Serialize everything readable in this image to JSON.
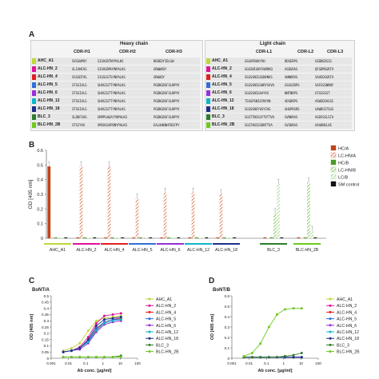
{
  "panelA": {
    "letter": "A",
    "heavy_title": "Heavy chain",
    "light_title": "Light chain",
    "heavy_cols": [
      "CDR-H1",
      "CDR-H2",
      "CDR-H3"
    ],
    "light_cols": [
      "CDR-L1",
      "CDR-L2",
      "CDR-L3"
    ],
    "rows": [
      {
        "label": "AHC_A1",
        "color": "#c0d63a",
        "h": [
          "SVSSWPKY",
          "SIGVGRTNYPALKS",
          "NSREDYIDLSW"
        ],
        "l": [
          "GSGVPDAKYVH",
          "RDSERPS",
          "GSDDEDSIG"
        ]
      },
      {
        "label": "ALC-HN_2",
        "color": "#e0119b",
        "h": [
          "SLIANCVG",
          "SIGVGRPHYNPALKS",
          "GRWWADY"
        ],
        "l": [
          "GGGSNIGNYSVNRVQ",
          "ASDGRAS",
          "QFGDMSGRTV"
        ]
      },
      {
        "label": "ALC-HN_4",
        "color": "#e02020",
        "h": [
          "SSSSDTVG",
          "SIGSGSTSYNPALKS",
          "GRWADY"
        ],
        "l": [
          "SSGSSNIGSGNVNVS",
          "ANNKRVS",
          "SAVEDSGRTV"
        ]
      },
      {
        "label": "ALC-HN_5",
        "color": "#2f6fd6",
        "h": [
          "STSSIVLG",
          "SHVGIGTTYNPALKS",
          "PGDDGDSFSLNPYV"
        ],
        "l": [
          "SSGSSNIGSHRYSVVA",
          "GSGGSRPS",
          "SAFGSSNRNY"
        ]
      },
      {
        "label": "ALC-HN_6",
        "color": "#9b2fd6",
        "h": [
          "STSSIVLG",
          "SHVGIGTTYNPALKS",
          "PGDDGDSFSLNPYV"
        ],
        "l": [
          "SGGSSNIGAAYVS",
          "NNTNRPS",
          "GTGSSSST"
        ]
      },
      {
        "label": "ALC-HN_12",
        "color": "#0fb4c8",
        "h": [
          "STSSIVLG",
          "SHVGIGTTYNPALKS",
          "PGDDGDSFSLNPYV"
        ],
        "l": [
          "TSSGPSNIGYNYVN",
          "ADSDRPS",
          "ASWSDSVGSI"
        ]
      },
      {
        "label": "ALC-HN_18",
        "color": "#1d2d8a",
        "h": [
          "STSSIVLG",
          "SHVGIGTTYNPALKS",
          "PGDDGDSFSLNPYV"
        ],
        "l": [
          "SGSSSNGYVGYIAG",
          "GHGPRSRS",
          "GAWDGSTSGS"
        ]
      },
      {
        "label": "BLC_3",
        "color": "#2e7d2e",
        "h": [
          "SLDDFSVG",
          "GMPPLWGAYYNPALKS",
          "PGDDGDSFSLNPYV"
        ],
        "l": [
          "SGSTTNIGSYTVTTVA",
          "GVNKRAS",
          "ASDSSSLSTA"
        ]
      },
      {
        "label": "BLC-HN_2B",
        "color": "#6ec81e",
        "h": [
          "STSIYVG",
          "VMSVGGVPDNYPALKS",
          "EALAHKNHFDGFPY"
        ],
        "l": [
          "SGSTADIGSDNTTVA",
          "GVSKRAS",
          "AAADNSLVE"
        ]
      }
    ]
  },
  "panelB": {
    "letter": "B",
    "ylabel": "OD [405 nm]",
    "yticks": [
      "0",
      "0.1",
      "0.2",
      "0.3",
      "0.4",
      "0.5",
      "0.6"
    ],
    "legend": [
      {
        "label": "HC/A",
        "color": "#c0441a",
        "fill": "solid"
      },
      {
        "label": "LC-HN/A",
        "color": "#d9764e",
        "fill": "hatch"
      },
      {
        "label": "HC/B",
        "color": "#4c9a2a",
        "fill": "solid"
      },
      {
        "label": "LC-HN/B",
        "color": "#7fc35a",
        "fill": "hatch"
      },
      {
        "label": "LC/B",
        "color": "#a6d98a",
        "fill": "hatch"
      },
      {
        "label": "SM control",
        "color": "#111111",
        "fill": "solid"
      }
    ],
    "groups": [
      {
        "label": "AHC_A1",
        "color": "#c0d63a",
        "values": [
          0.49,
          0.0,
          0.0,
          0.0,
          0.0,
          0.0
        ]
      },
      {
        "label": "ALC-HN_2",
        "color": "#e0119b",
        "values": [
          0.0,
          0.49,
          0.0,
          0.0,
          0.0,
          0.0
        ]
      },
      {
        "label": "ALC-HN_4",
        "color": "#e02020",
        "values": [
          0.0,
          0.49,
          0.0,
          0.0,
          0.0,
          0.0
        ]
      },
      {
        "label": "ALC-HN_5",
        "color": "#2f6fd6",
        "values": [
          0.0,
          0.27,
          0.0,
          0.0,
          0.0,
          0.0
        ]
      },
      {
        "label": "ALC-HN_6",
        "color": "#9b2fd6",
        "values": [
          0.0,
          0.31,
          0.0,
          0.0,
          0.0,
          0.0
        ]
      },
      {
        "label": "ALC-HN_12",
        "color": "#0fb4c8",
        "values": [
          0.0,
          0.31,
          0.0,
          0.0,
          0.0,
          0.0
        ]
      },
      {
        "label": "ALC-HN_18",
        "color": "#1d2d8a",
        "values": [
          0.0,
          0.3,
          0.0,
          0.0,
          0.0,
          0.0
        ]
      },
      {
        "label": "BLC_3",
        "color": "#2e7d2e",
        "values": [
          0.0,
          0.0,
          0.0,
          0.17,
          0.37,
          0.0
        ]
      },
      {
        "label": "BLC-HN_2B",
        "color": "#6ec81e",
        "values": [
          0.0,
          0.0,
          0.0,
          0.38,
          0.05,
          0.0
        ]
      }
    ]
  },
  "panelC": {
    "letter": "C",
    "title": "BoNT/A",
    "ylabel": "OD [405 nm]",
    "xlabel": "Ab conc. [µg/ml]",
    "yticks": [
      "0",
      "0.05",
      "0.1",
      "0.15",
      "0.2",
      "0.25",
      "0.3",
      "0.35",
      "0.4",
      "0.45",
      "0.5"
    ],
    "xticks": [
      "0.001",
      "0.01",
      "0.1",
      "1",
      "10",
      "100"
    ]
  },
  "panelD": {
    "letter": "D",
    "title": "BoNT/B",
    "ylabel": "OD [405 nm]",
    "xlabel": "Ab conc. [µg/ml]",
    "yticks": [
      "0",
      "0.1",
      "0.2",
      "0.3",
      "0.4",
      "0.5",
      "0.6"
    ],
    "xticks": [
      "0.001",
      "0.01",
      "0.1",
      "1",
      "10",
      "100"
    ]
  },
  "lineLegend": [
    {
      "label": "AHC_A1",
      "color": "#c0d63a"
    },
    {
      "label": "ALC-HN_2",
      "color": "#e0119b"
    },
    {
      "label": "ALC-HN_4",
      "color": "#e02020"
    },
    {
      "label": "ALC-HN_5",
      "color": "#2f6fd6"
    },
    {
      "label": "ALC-HN_6",
      "color": "#9b2fd6"
    },
    {
      "label": "ALC-HN_12",
      "color": "#0fb4c8"
    },
    {
      "label": "ALC-HN_18",
      "color": "#1d2d8a"
    },
    {
      "label": "BLC_3",
      "color": "#2e7d2e"
    },
    {
      "label": "BLC-HN_2B",
      "color": "#6ec81e"
    }
  ],
  "chart_data": [
    {
      "type": "bar",
      "title": "",
      "ylabel": "OD [405 nm]",
      "ylim": [
        0,
        0.6
      ],
      "categories": [
        "AHC_A1",
        "ALC-HN_2",
        "ALC-HN_4",
        "ALC-HN_5",
        "ALC-HN_6",
        "ALC-HN_12",
        "ALC-HN_18",
        "BLC_3",
        "BLC-HN_2B"
      ],
      "series": [
        {
          "name": "HC/A",
          "values": [
            0.49,
            0,
            0,
            0,
            0,
            0,
            0,
            0,
            0
          ]
        },
        {
          "name": "LC-HN/A",
          "values": [
            0,
            0.49,
            0.49,
            0.27,
            0.31,
            0.31,
            0.3,
            0,
            0
          ]
        },
        {
          "name": "HC/B",
          "values": [
            0,
            0,
            0,
            0,
            0,
            0,
            0,
            0,
            0
          ]
        },
        {
          "name": "LC-HN/B",
          "values": [
            0,
            0,
            0,
            0,
            0,
            0,
            0,
            0.17,
            0.38
          ]
        },
        {
          "name": "LC/B",
          "values": [
            0,
            0,
            0,
            0,
            0,
            0,
            0,
            0.37,
            0.05
          ]
        },
        {
          "name": "SM control",
          "values": [
            0,
            0,
            0,
            0,
            0,
            0,
            0,
            0,
            0
          ]
        }
      ]
    },
    {
      "type": "line",
      "title": "BoNT/A",
      "xlabel": "Ab conc. [µg/ml]",
      "ylabel": "OD [405 nm]",
      "ylim": [
        0,
        0.5
      ],
      "x": [
        0.005,
        0.015,
        0.045,
        0.14,
        0.41,
        1.2,
        3.7,
        11
      ],
      "series": [
        {
          "name": "AHC_A1",
          "values": [
            0.06,
            0.08,
            0.12,
            0.22,
            0.3,
            0.32,
            0.33,
            0.34
          ]
        },
        {
          "name": "ALC-HN_2",
          "values": [
            0.05,
            0.06,
            0.09,
            0.17,
            0.28,
            0.34,
            0.35,
            0.36
          ]
        },
        {
          "name": "ALC-HN_4",
          "values": [
            0.05,
            0.06,
            0.08,
            0.14,
            0.23,
            0.29,
            0.31,
            0.32
          ]
        },
        {
          "name": "ALC-HN_5",
          "values": [
            0.05,
            0.06,
            0.08,
            0.14,
            0.24,
            0.29,
            0.31,
            0.31
          ]
        },
        {
          "name": "ALC-HN_6",
          "values": [
            0.05,
            0.06,
            0.07,
            0.12,
            0.21,
            0.27,
            0.29,
            0.3
          ]
        },
        {
          "name": "ALC-HN_12",
          "values": [
            0.05,
            0.06,
            0.08,
            0.13,
            0.22,
            0.28,
            0.3,
            0.31
          ]
        },
        {
          "name": "ALC-HN_18",
          "values": [
            0.05,
            0.06,
            0.08,
            0.15,
            0.26,
            0.31,
            0.32,
            0.33
          ]
        },
        {
          "name": "BLC_3",
          "values": [
            0.01,
            0.01,
            0.01,
            0.01,
            0.01,
            0.01,
            0.01,
            0.02
          ]
        },
        {
          "name": "BLC-HN_2B",
          "values": [
            0.01,
            0.01,
            0.01,
            0.01,
            0.01,
            0.01,
            0.01,
            0.01
          ]
        }
      ]
    },
    {
      "type": "line",
      "title": "BoNT/B",
      "xlabel": "Ab conc. [µg/ml]",
      "ylabel": "OD [405 nm]",
      "ylim": [
        0,
        0.6
      ],
      "x": [
        0.005,
        0.015,
        0.045,
        0.14,
        0.41,
        1.2,
        3.7,
        11
      ],
      "series": [
        {
          "name": "AHC_A1",
          "values": [
            0.01,
            0.01,
            0.01,
            0.01,
            0.01,
            0.01,
            0.01,
            0.01
          ]
        },
        {
          "name": "ALC-HN_2",
          "values": [
            0.01,
            0.01,
            0.01,
            0.01,
            0.01,
            0.01,
            0.01,
            0.01
          ]
        },
        {
          "name": "ALC-HN_4",
          "values": [
            0.01,
            0.01,
            0.01,
            0.01,
            0.01,
            0.01,
            0.01,
            0.01
          ]
        },
        {
          "name": "ALC-HN_5",
          "values": [
            0.01,
            0.01,
            0.01,
            0.01,
            0.01,
            0.01,
            0.01,
            0.01
          ]
        },
        {
          "name": "ALC-HN_6",
          "values": [
            0.01,
            0.01,
            0.01,
            0.01,
            0.01,
            0.01,
            0.01,
            0.01
          ]
        },
        {
          "name": "ALC-HN_12",
          "values": [
            0.01,
            0.01,
            0.01,
            0.01,
            0.01,
            0.01,
            0.01,
            0.01
          ]
        },
        {
          "name": "ALC-HN_18",
          "values": [
            0.01,
            0.01,
            0.01,
            0.01,
            0.01,
            0.01,
            0.01,
            0.01
          ]
        },
        {
          "name": "BLC_3",
          "values": [
            0.01,
            0.01,
            0.01,
            0.01,
            0.01,
            0.02,
            0.03,
            0.05
          ]
        },
        {
          "name": "BLC-HN_2B",
          "values": [
            0.02,
            0.05,
            0.14,
            0.3,
            0.42,
            0.47,
            0.48,
            0.48
          ]
        }
      ]
    }
  ]
}
